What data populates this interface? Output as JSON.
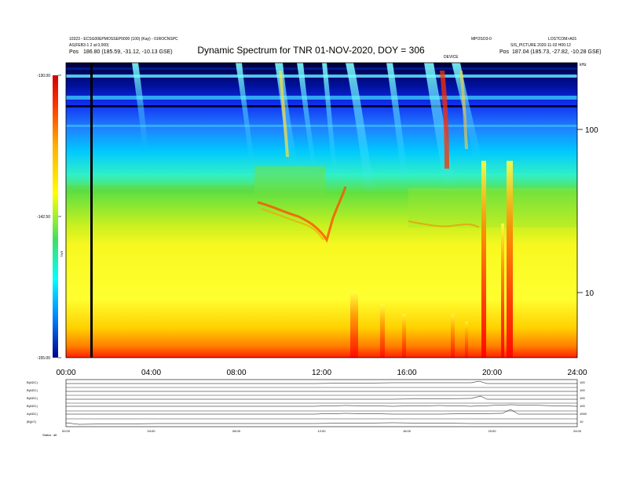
{
  "header": {
    "title": "Dynamic Spectrum for TNR 01-NOV-2020, DOY = 306",
    "meta_left_1": "10323 - ECSG00EPMOSSEP0000 (100) (Kay) - 01ROCNSPC",
    "meta_left_2": "AS(FEB3-1 2 at 0,000)",
    "meta_right_1": "MPOSO3-0",
    "meta_right_2": "LOS?COM>A01",
    "meta_right_3": "SIS_PICTURE 2020-11-02 H00:12",
    "pos_left_label": "Pos",
    "pos_left_value": "186.80 (185.59, -31.12, -10.13 GSE)",
    "pos_right_label": "Pos",
    "pos_right_value": "187.04 (185.73, -27.82, -10.28 GSE)",
    "marker_label": "DEVICE",
    "corner_label": "kHz"
  },
  "colorbar": {
    "labels": [
      "-130.00",
      "-142.50",
      "-155.00"
    ],
    "units": "TNR"
  },
  "chart_data": [
    {
      "type": "heatmap",
      "title": "Dynamic Spectrum for TNR 01-NOV-2020, DOY = 306",
      "x_ticks": [
        "00:00",
        "04:00",
        "08:00",
        "12:00",
        "16:00",
        "20:00",
        "24:00"
      ],
      "x_range_hours": [
        0,
        24
      ],
      "y_ticks": [
        "100",
        "10"
      ],
      "y_unit": "kHz",
      "y_scale": "log",
      "y_range_khz": [
        4,
        250
      ],
      "colorbar_range": [
        -155,
        -130
      ],
      "colorbar_ticks": [
        -130.0,
        -142.5,
        -155.0
      ],
      "bursts_hours": [
        3.2,
        8.9,
        10.2,
        11.3,
        13.6,
        14.9,
        17.7,
        19.6,
        20.6,
        20.9
      ],
      "data_gap_hour": 1.2
    },
    {
      "type": "line",
      "title": "",
      "panels": [
        {
          "label": "B(ADC)",
          "axis_right": "100"
        },
        {
          "label": "B(ADC)",
          "axis_right": "100"
        },
        {
          "label": "B(ADC)",
          "axis_right": "100"
        },
        {
          "label": "B(ADC)",
          "axis_right": "100"
        },
        {
          "label": "A(ADC)",
          "axis_right": "1000"
        },
        {
          "label": "|B|(nT)",
          "axis_right": "10"
        }
      ],
      "x_ticks": [
        "00:00",
        "04:00",
        "08:00",
        "12:00",
        "16:00",
        "20:00",
        "24:00"
      ],
      "footer_label": "Status",
      "footer_value": "alt"
    }
  ]
}
